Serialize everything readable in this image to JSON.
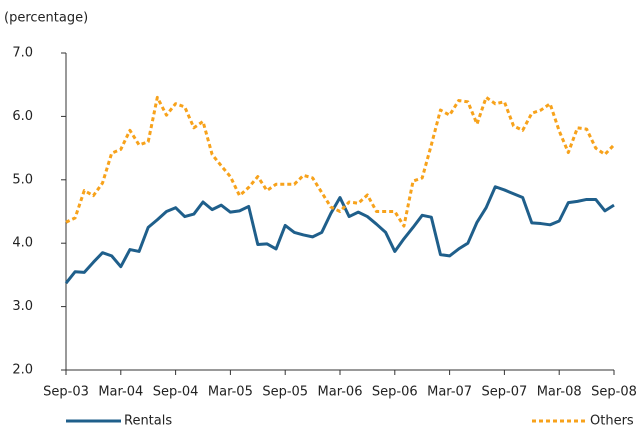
{
  "chart_data": {
    "type": "line",
    "y_label": "(percentage)",
    "categories": [
      "Sep-03",
      null,
      null,
      null,
      null,
      null,
      "Mar-04",
      null,
      null,
      null,
      null,
      null,
      "Sep-04",
      null,
      null,
      null,
      null,
      null,
      "Mar-05",
      null,
      null,
      null,
      null,
      null,
      "Sep-05",
      null,
      null,
      null,
      null,
      null,
      "Mar-06",
      null,
      null,
      null,
      null,
      null,
      "Sep-06",
      null,
      null,
      null,
      null,
      null,
      "Mar-07",
      null,
      null,
      null,
      null,
      null,
      "Sep-07",
      null,
      null,
      null,
      null,
      null,
      "Mar-08",
      null,
      null,
      null,
      null,
      null,
      "Sep-08"
    ],
    "series": [
      {
        "name": "Rentals",
        "color": "#1f5f8b",
        "dashed": false,
        "values": [
          3.37,
          3.55,
          3.54,
          3.7,
          3.85,
          3.8,
          3.63,
          3.9,
          3.87,
          4.25,
          4.37,
          4.5,
          4.56,
          4.42,
          4.46,
          4.65,
          4.53,
          4.6,
          4.49,
          4.51,
          4.58,
          3.98,
          3.99,
          3.91,
          4.28,
          4.17,
          4.13,
          4.1,
          4.17,
          4.47,
          4.72,
          4.42,
          4.49,
          4.42,
          4.3,
          4.17,
          3.87,
          4.07,
          4.25,
          4.44,
          4.41,
          3.82,
          3.8,
          3.91,
          4.0,
          4.33,
          4.56,
          4.89,
          4.84,
          4.78,
          4.72,
          4.32,
          4.31,
          4.29,
          4.35,
          4.64,
          4.66,
          4.69,
          4.69,
          4.51,
          4.6
        ]
      },
      {
        "name": "Others",
        "color": "#f7a21b",
        "dashed": true,
        "values": [
          4.33,
          4.4,
          4.83,
          4.75,
          4.95,
          5.42,
          5.48,
          5.78,
          5.55,
          5.6,
          6.3,
          6.02,
          6.2,
          6.15,
          5.82,
          5.92,
          5.4,
          5.22,
          5.05,
          4.75,
          4.88,
          5.05,
          4.83,
          4.93,
          4.93,
          4.93,
          5.07,
          5.03,
          4.8,
          4.57,
          4.5,
          4.65,
          4.63,
          4.76,
          4.5,
          4.5,
          4.5,
          4.27,
          4.98,
          5.03,
          5.55,
          6.1,
          6.02,
          6.25,
          6.23,
          5.88,
          6.3,
          6.2,
          6.23,
          5.85,
          5.78,
          6.05,
          6.1,
          6.2,
          5.77,
          5.43,
          5.82,
          5.8,
          5.5,
          5.4,
          5.55
        ]
      }
    ],
    "ylim": [
      2,
      7
    ],
    "yticks": [
      {
        "value": 2,
        "label": "2.0"
      },
      {
        "value": 3,
        "label": "3.0"
      },
      {
        "value": 4,
        "label": "4.0"
      },
      {
        "value": 5,
        "label": "5.0"
      },
      {
        "value": 6,
        "label": "6.0"
      },
      {
        "value": 7,
        "label": "7.0"
      }
    ],
    "grid": false
  }
}
